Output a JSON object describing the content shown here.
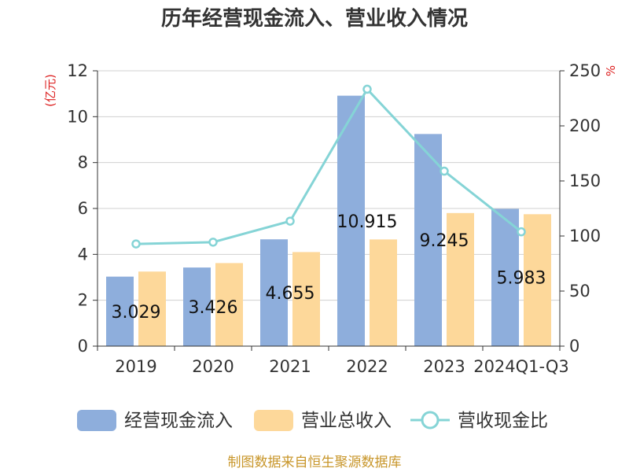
{
  "chart_data": {
    "type": "bar",
    "title": "历年经营现金流入、营业收入情况",
    "categories": [
      "2019",
      "2020",
      "2021",
      "2022",
      "2023",
      "2024Q1-Q3"
    ],
    "series": [
      {
        "name": "经营现金流入",
        "type": "bar",
        "axis": "left",
        "color": "#8eaedc",
        "values": [
          3.029,
          3.426,
          4.655,
          10.915,
          9.245,
          5.983
        ],
        "labels": [
          "3.029",
          "3.426",
          "4.655",
          "10.915",
          "9.245",
          "5.983"
        ]
      },
      {
        "name": "营业总收入",
        "type": "bar",
        "axis": "left",
        "color": "#fdd89a",
        "values": [
          3.25,
          3.62,
          4.1,
          4.65,
          5.8,
          5.75
        ]
      },
      {
        "name": "营收现金比",
        "type": "line",
        "axis": "right",
        "color": "#85d4d6",
        "values": [
          92.8,
          94.4,
          113.5,
          233.3,
          158.9,
          103.8
        ]
      }
    ],
    "left_axis": {
      "unit": "(亿元)",
      "min": 0,
      "max": 12,
      "ticks": [
        "0",
        "2",
        "4",
        "6",
        "8",
        "10",
        "12"
      ]
    },
    "right_axis": {
      "unit": "%",
      "min": 0,
      "max": 250,
      "ticks": [
        "0",
        "50",
        "100",
        "150",
        "200",
        "250"
      ]
    },
    "grid": true,
    "legend_position": "bottom",
    "colors": {
      "axis_unit": "#dd2222",
      "source_text": "#c8962a",
      "grid": "#d0d0d0",
      "axis": "#333333"
    }
  },
  "footer": {
    "source": "制图数据来自恒生聚源数据库"
  }
}
